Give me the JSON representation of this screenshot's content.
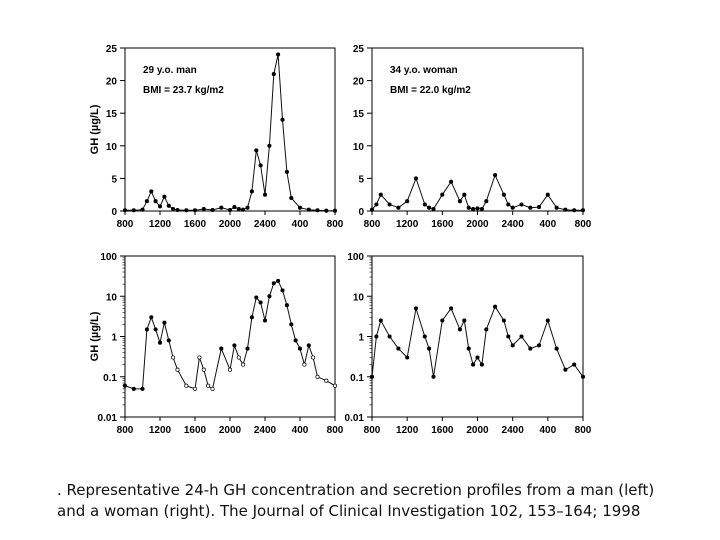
{
  "chart_data": [
    {
      "type": "line",
      "title": "",
      "annotations": [
        "29 y.o. man",
        "BMI = 23.7 kg/m2"
      ],
      "xlabel": "",
      "ylabel": "GH (µg/L)",
      "yscale": "linear",
      "ylim": [
        0,
        25
      ],
      "yticks": [
        0,
        5,
        10,
        15,
        20,
        25
      ],
      "ytick_labels": [
        "0",
        "5",
        "10",
        "15",
        "20",
        "25"
      ],
      "xlim": [
        0,
        24
      ],
      "xticks": [
        0,
        4,
        8,
        12,
        16,
        20,
        24
      ],
      "xtick_labels": [
        "800",
        "1200",
        "1600",
        "2000",
        "2400",
        "400",
        "800"
      ],
      "series": [
        {
          "name": "GH concentration",
          "x": [
            0,
            1,
            2,
            2.5,
            3,
            3.5,
            4,
            4.5,
            5,
            5.5,
            6,
            7,
            8,
            9,
            10,
            11,
            12,
            12.5,
            13,
            13.5,
            14,
            14.5,
            15,
            15.5,
            16,
            16.5,
            17,
            17.5,
            18,
            18.5,
            19,
            20,
            21,
            22,
            23,
            24
          ],
          "values": [
            0.1,
            0.1,
            0.2,
            1.5,
            3.0,
            1.5,
            0.7,
            2.2,
            0.8,
            0.3,
            0.15,
            0.1,
            0.1,
            0.3,
            0.15,
            0.5,
            0.15,
            0.6,
            0.3,
            0.2,
            0.5,
            3.0,
            9.3,
            7.0,
            2.5,
            10.0,
            21.0,
            24.0,
            14.0,
            6.0,
            2.0,
            0.5,
            0.2,
            0.1,
            0.05,
            0.05
          ]
        }
      ]
    },
    {
      "type": "line",
      "title": "",
      "annotations": [
        "34 y.o. woman",
        "BMI = 22.0 kg/m2"
      ],
      "xlabel": "",
      "ylabel": "",
      "yscale": "linear",
      "ylim": [
        0,
        25
      ],
      "yticks": [
        0,
        5,
        10,
        15,
        20,
        25
      ],
      "ytick_labels": [
        "0",
        "5",
        "10",
        "15",
        "20",
        "25"
      ],
      "xlim": [
        0,
        24
      ],
      "xticks": [
        0,
        4,
        8,
        12,
        16,
        20,
        24
      ],
      "xtick_labels": [
        "800",
        "1200",
        "1600",
        "2000",
        "2400",
        "400",
        "800"
      ],
      "series": [
        {
          "name": "GH concentration",
          "x": [
            0,
            0.5,
            1,
            2,
            3,
            4,
            5,
            6,
            6.5,
            7,
            8,
            9,
            10,
            10.5,
            11,
            11.5,
            12,
            12.5,
            13,
            14,
            15,
            15.5,
            16,
            17,
            18,
            19,
            20,
            21,
            22,
            23,
            24
          ],
          "values": [
            0.2,
            1.0,
            2.5,
            1.0,
            0.5,
            1.5,
            5.0,
            1.0,
            0.5,
            0.3,
            2.5,
            4.5,
            1.5,
            2.5,
            0.5,
            0.3,
            0.4,
            0.3,
            1.5,
            5.5,
            2.5,
            1.0,
            0.5,
            1.0,
            0.5,
            0.6,
            2.5,
            0.5,
            0.2,
            0.1,
            0.1
          ]
        }
      ]
    },
    {
      "type": "line",
      "title": "",
      "xlabel": "",
      "ylabel": "GH (µg/L)",
      "yscale": "log",
      "ylim": [
        0.01,
        100
      ],
      "yticks": [
        0.01,
        0.1,
        1,
        10,
        100
      ],
      "ytick_labels": [
        "0.01",
        "0.1",
        "1",
        "10",
        "100"
      ],
      "xlim": [
        0,
        24
      ],
      "xticks": [
        0,
        4,
        8,
        12,
        16,
        20,
        24
      ],
      "xtick_labels": [
        "800",
        "1200",
        "1600",
        "2000",
        "2400",
        "400",
        "800"
      ],
      "series": [
        {
          "name": "GH concentration (log)",
          "x": [
            0,
            1,
            2,
            2.5,
            3,
            3.5,
            4,
            4.5,
            5,
            5.5,
            6,
            7,
            8,
            8.5,
            9,
            9.5,
            10,
            11,
            12,
            12.5,
            13,
            13.5,
            14,
            14.5,
            15,
            15.5,
            16,
            16.5,
            17,
            17.5,
            18,
            18.5,
            19,
            19.5,
            20,
            20.5,
            21,
            21.5,
            22,
            23,
            24
          ],
          "values": [
            0.06,
            0.05,
            0.05,
            1.5,
            3.0,
            1.5,
            0.7,
            2.2,
            0.8,
            0.3,
            0.15,
            0.06,
            0.05,
            0.3,
            0.15,
            0.06,
            0.05,
            0.5,
            0.15,
            0.6,
            0.3,
            0.2,
            0.5,
            3.0,
            9.3,
            7.0,
            2.5,
            10.0,
            21.0,
            24.0,
            14.0,
            6.0,
            2.0,
            0.8,
            0.5,
            0.2,
            0.6,
            0.3,
            0.1,
            0.08,
            0.06
          ]
        }
      ]
    },
    {
      "type": "line",
      "title": "",
      "xlabel": "",
      "ylabel": "",
      "yscale": "log",
      "ylim": [
        0.01,
        100
      ],
      "yticks": [
        0.01,
        0.1,
        1,
        10,
        100
      ],
      "ytick_labels": [
        "0.01",
        "0.1",
        "1",
        "10",
        "100"
      ],
      "xlim": [
        0,
        24
      ],
      "xticks": [
        0,
        4,
        8,
        12,
        16,
        20,
        24
      ],
      "xtick_labels": [
        "800",
        "1200",
        "1600",
        "2000",
        "2400",
        "400",
        "800"
      ],
      "series": [
        {
          "name": "GH concentration (log)",
          "x": [
            0,
            0.5,
            1,
            2,
            3,
            4,
            5,
            6,
            6.5,
            7,
            8,
            9,
            10,
            10.5,
            11,
            11.5,
            12,
            12.5,
            13,
            14,
            15,
            15.5,
            16,
            17,
            18,
            19,
            20,
            21,
            22,
            23,
            24
          ],
          "values": [
            0.1,
            1.0,
            2.5,
            1.0,
            0.5,
            0.3,
            5.0,
            1.0,
            0.5,
            0.1,
            2.5,
            5.0,
            1.5,
            2.5,
            0.5,
            0.2,
            0.3,
            0.2,
            1.5,
            5.5,
            2.5,
            1.0,
            0.6,
            1.0,
            0.5,
            0.6,
            2.5,
            0.5,
            0.15,
            0.2,
            0.1
          ]
        }
      ]
    }
  ],
  "caption": {
    "line1": ". Representative 24-h GH concentration and secretion profiles from a man (left)",
    "line2": "and a woman (right). The Journal of Clinical Investigation 102, 153–164; 1998"
  }
}
